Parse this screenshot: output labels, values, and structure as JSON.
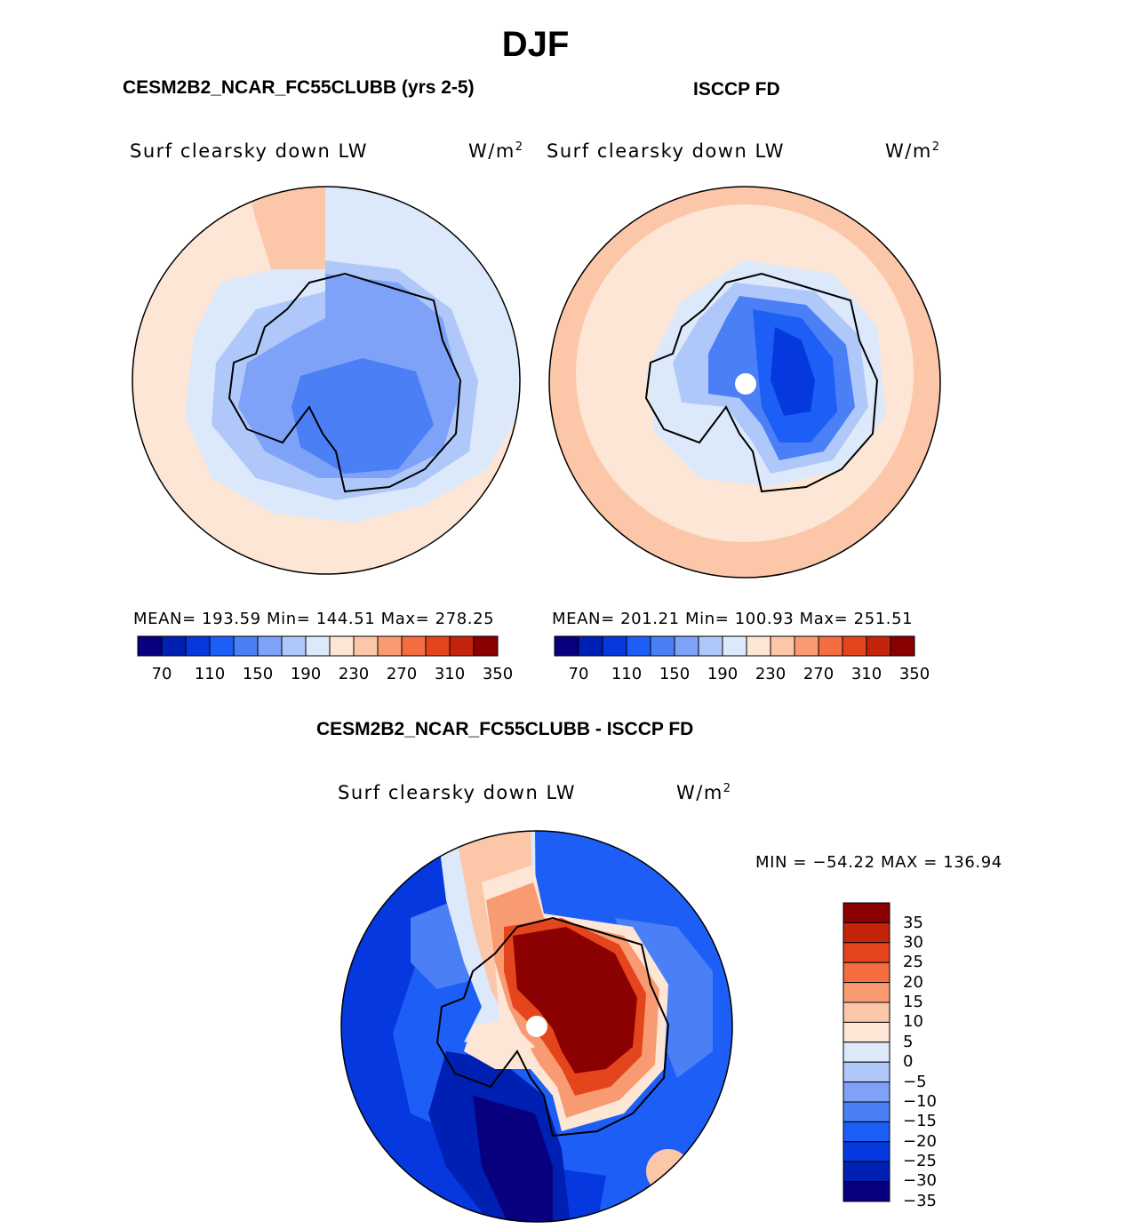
{
  "figure": {
    "title": "DJF",
    "left_panel": {
      "title": "CESM2B2_NCAR_FC55CLUBB (yrs 2-5)",
      "variable": "Surf clearsky down LW",
      "units_base": "W/m",
      "units_exp": "2",
      "stats": "MEAN= 193.59   Min= 144.51   Max= 278.25"
    },
    "right_panel": {
      "title": "ISCCP FD",
      "variable": "Surf clearsky down LW",
      "units_base": "W/m",
      "units_exp": "2",
      "stats": "MEAN= 201.21   Min= 100.93   Max= 251.51"
    },
    "diff_panel": {
      "title": "CESM2B2_NCAR_FC55CLUBB - ISCCP FD",
      "variable": "Surf clearsky down LW",
      "units_base": "W/m",
      "units_exp": "2",
      "stats": "MIN = −54.22 MAX = 136.94"
    }
  },
  "colors": {
    "abs_scale": [
      "#08007f",
      "#0020b3",
      "#0539df",
      "#1d5ef6",
      "#4a7ff5",
      "#7ea2f7",
      "#b0c8f9",
      "#dce9fb",
      "#fde6d5",
      "#fcc6a8",
      "#f99b72",
      "#f36d41",
      "#e4451d",
      "#c4230c",
      "#8b0000"
    ],
    "diff_scale": [
      "#08007f",
      "#0020b3",
      "#0539df",
      "#1d5ef6",
      "#4a7ff5",
      "#7ea2f7",
      "#b0c8f9",
      "#dce9fb",
      "#fde6d5",
      "#fcc6a8",
      "#f99b72",
      "#f36d41",
      "#e4451d",
      "#c4230c",
      "#8b0000"
    ]
  },
  "colorbar_abs": {
    "labels": [
      "70",
      "110",
      "150",
      "190",
      "230",
      "270",
      "310",
      "350"
    ]
  },
  "colorbar_diff": {
    "labels": [
      "35",
      "30",
      "25",
      "20",
      "15",
      "10",
      "5",
      "0",
      "−5",
      "−10",
      "−15",
      "−20",
      "−25",
      "−30",
      "−35"
    ]
  }
}
